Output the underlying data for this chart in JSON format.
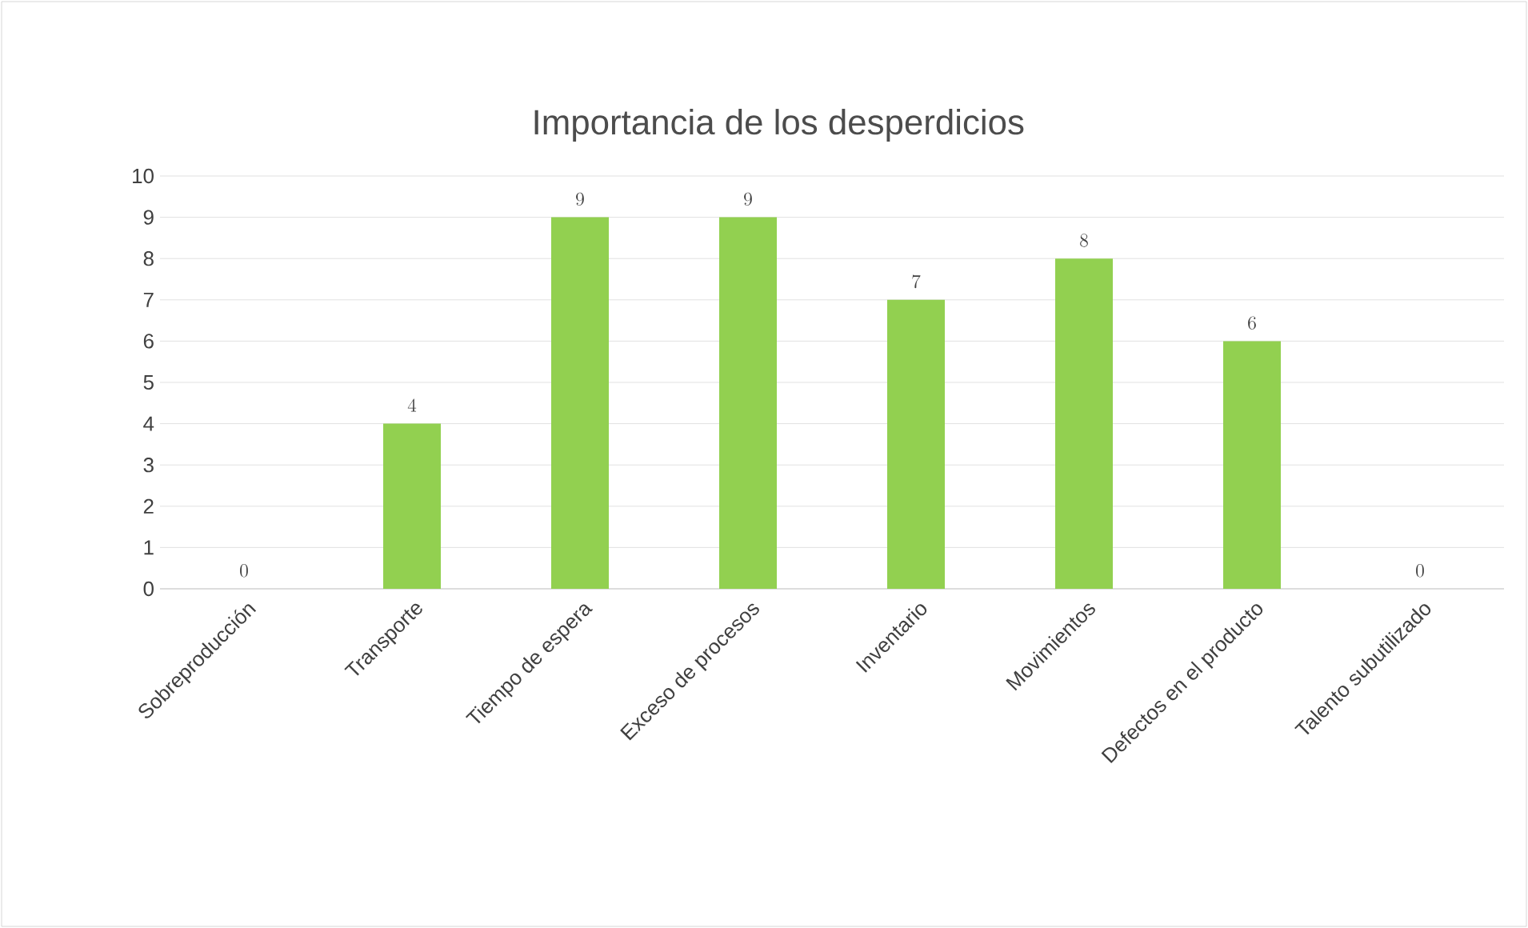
{
  "chart_data": {
    "type": "bar",
    "title": "Importancia de los desperdicios",
    "categories": [
      "Sobreproducción",
      "Transporte",
      "Tiempo de espera",
      "Exceso de procesos",
      "Inventario",
      "Movimientos",
      "Defectos en el producto",
      "Talento subutilizado"
    ],
    "values": [
      0,
      4,
      9,
      9,
      7,
      8,
      6,
      0
    ],
    "color": "#92d050",
    "ylim": [
      0,
      10
    ],
    "yticks": [
      0,
      1,
      2,
      3,
      4,
      5,
      6,
      7,
      8,
      9,
      10
    ],
    "grid": "y",
    "data_labels": true
  }
}
